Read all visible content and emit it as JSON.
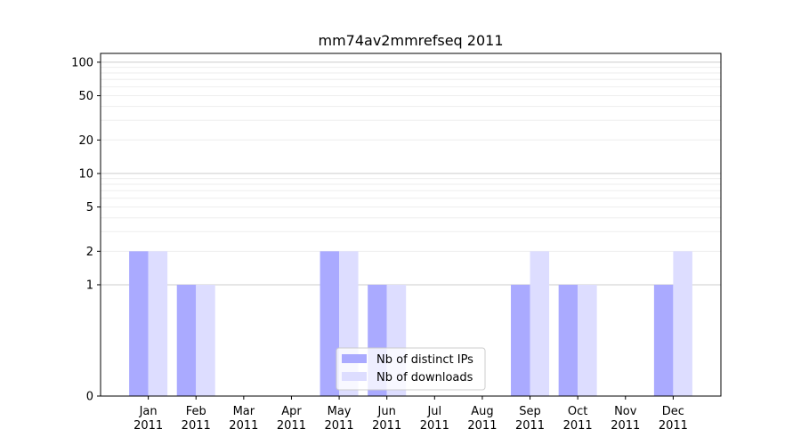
{
  "chart_data": {
    "type": "bar",
    "title": "mm74av2mmrefseq 2011",
    "xlabel": "",
    "ylabel": "",
    "yscale": "symlog",
    "ylim": [
      0,
      120
    ],
    "yticks": [
      0,
      1,
      2,
      5,
      10,
      20,
      50,
      100
    ],
    "ytick_labels": [
      "0",
      "1",
      "2",
      "5",
      "10",
      "20",
      "50",
      "100"
    ],
    "categories": [
      "Jan",
      "Feb",
      "Mar",
      "Apr",
      "May",
      "Jun",
      "Jul",
      "Aug",
      "Sep",
      "Oct",
      "Nov",
      "Dec"
    ],
    "category_year": "2011",
    "series": [
      {
        "name": "Nb of distinct IPs",
        "color": "#aaaaff",
        "values": [
          2,
          1,
          0,
          0,
          2,
          1,
          0,
          0,
          1,
          1,
          0,
          1
        ]
      },
      {
        "name": "Nb of downloads",
        "color": "#ddddff",
        "values": [
          2,
          1,
          0,
          0,
          2,
          1,
          0,
          0,
          2,
          1,
          0,
          2
        ]
      }
    ],
    "grid": true,
    "legend_position": "lower center"
  }
}
